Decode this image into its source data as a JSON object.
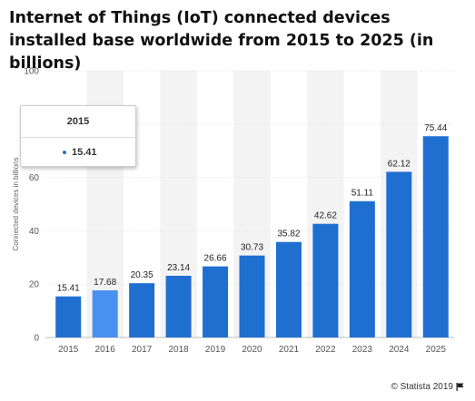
{
  "chart_data": {
    "type": "bar",
    "title": "Internet of Things (IoT) connected devices installed base worldwide from 2015 to 2025 (in billions)",
    "xlabel": "",
    "ylabel": "Connected devices in billions",
    "categories": [
      "2015",
      "2016",
      "2017",
      "2018",
      "2019",
      "2020",
      "2021",
      "2022",
      "2023",
      "2024",
      "2025"
    ],
    "values": [
      15.41,
      17.68,
      20.35,
      23.14,
      26.66,
      30.73,
      35.82,
      42.62,
      51.11,
      62.12,
      75.44
    ],
    "value_labels": [
      "15.41",
      "17.68",
      "20.35",
      "23.14",
      "26.66",
      "30.73",
      "35.82",
      "42.62",
      "51.11",
      "62.12",
      "75.44"
    ],
    "ylim": [
      0,
      100
    ],
    "yticks": [
      "0",
      "20",
      "40",
      "60",
      "80",
      "100"
    ],
    "grid": true,
    "highlighted_category": "2016",
    "colors": {
      "bar": "#1f6fd1",
      "bar_highlight": "#4a90f0",
      "band": "#f3f3f3",
      "grid": "#e2e2e2"
    }
  },
  "tooltip": {
    "header": "2015",
    "value": "15.41"
  },
  "credit": {
    "text": "© Statista 2019",
    "icon": "flag-icon"
  }
}
